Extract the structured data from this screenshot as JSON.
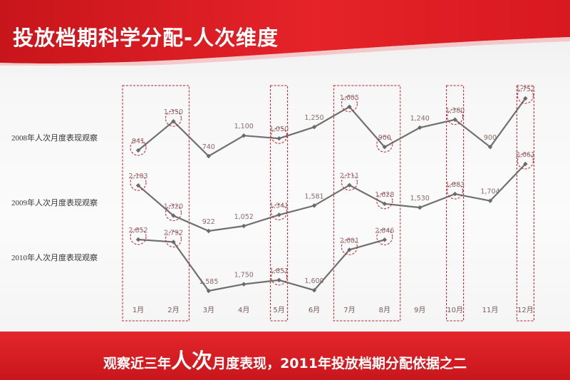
{
  "header": {
    "title": "投放档期科学分配-人次维度"
  },
  "footer": {
    "text_before": "观察近三年",
    "text_emphasis": "人次",
    "text_after": "月度表现，2011年投放档期分配依据之二"
  },
  "colors": {
    "accent_red": "#d7191f",
    "line": "#707070",
    "highlight": "#c0202a"
  },
  "chart_data": {
    "type": "line",
    "categories": [
      "1月",
      "2月",
      "3月",
      "4月",
      "5月",
      "6月",
      "7月",
      "8月",
      "9月",
      "10月",
      "11月",
      "12月"
    ],
    "series": [
      {
        "name": "2008年人次月度表现观察",
        "values": [
          841,
          1350,
          740,
          1100,
          1050,
          1250,
          1605,
          900,
          1240,
          1380,
          900,
          1752
        ],
        "labels": [
          "841",
          "1,350",
          "740",
          "1,100",
          "1,050",
          "1,250",
          "1,605",
          "900",
          "1,240",
          "1,380",
          "900",
          "1,752"
        ]
      },
      {
        "name": "2009年人次月度表现观察",
        "values": [
          2103,
          1320,
          922,
          1052,
          1341,
          1581,
          2111,
          1628,
          1530,
          1883,
          1704,
          2661
        ],
        "labels": [
          "2,103",
          "1,320",
          "922",
          "1,052",
          "1,341",
          "1,581",
          "2,111",
          "1,628",
          "1,530",
          "1,883",
          "1,704",
          "2,661"
        ]
      },
      {
        "name": "2010年人次月度表现观察",
        "values": [
          2852,
          2792,
          1585,
          1750,
          1851,
          1600,
          2601,
          2846,
          null,
          null,
          null,
          null
        ],
        "labels": [
          "2,852",
          "2,792",
          "1,585",
          "1,750",
          "1,851",
          "1,600",
          "2,601",
          "2,846",
          null,
          null,
          null,
          null
        ]
      }
    ],
    "highlight_months": [
      "1月",
      "2月",
      "5月",
      "7月",
      "8月",
      "10月",
      "12月"
    ],
    "grid": false,
    "legend": "none"
  }
}
